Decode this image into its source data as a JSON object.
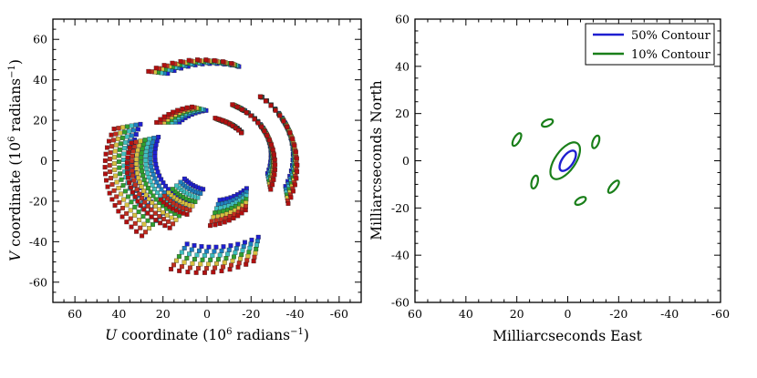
{
  "chart_data": [
    {
      "type": "scatter",
      "xlabel_italic": "U",
      "xlabel_rest": " coordinate (10",
      "xlabel_exp": "6",
      "xlabel_units": " radians",
      "xlabel_units_exp": "−1",
      "xlabel_close": ")",
      "ylabel_italic": "V",
      "ylabel_rest": " coordinate (10",
      "ylabel_exp": "6",
      "ylabel_units": " radians",
      "ylabel_units_exp": "−1",
      "ylabel_close": ")",
      "xlim": [
        70,
        -70
      ],
      "ylim": [
        -70,
        70
      ],
      "xticks": [
        60,
        40,
        20,
        0,
        -20,
        -40,
        -60
      ],
      "yticks": [
        60,
        40,
        20,
        0,
        -20,
        -40,
        -60
      ],
      "series_colors": [
        "#1f1fd0",
        "#1e7fbf",
        "#3fbfbf",
        "#2f9f2f",
        "#d8c040",
        "#c03020",
        "#b01010"
      ],
      "tracks": [
        {
          "r": 40,
          "a0": 128,
          "a1": 205
        },
        {
          "r": 49,
          "a0": 63,
          "a1": 105
        },
        {
          "r": 30,
          "a0": 115,
          "a1": 200
        },
        {
          "r": 21,
          "a0": 105,
          "a1": 138
        },
        {
          "r": 26,
          "a0": 227,
          "a1": 262
        },
        {
          "r": 40,
          "a0": 308,
          "a1": 385
        },
        {
          "r": 49,
          "a0": 243,
          "a1": 285
        },
        {
          "r": 30,
          "a0": 295,
          "a1": 380
        },
        {
          "r": 21,
          "a0": 285,
          "a1": 318
        },
        {
          "r": 26,
          "a0": 47,
          "a1": 82
        }
      ]
    },
    {
      "type": "contour",
      "xlabel": "Milliarcseconds East",
      "ylabel": "Milliarcseconds North",
      "xlim": [
        60,
        -60
      ],
      "ylim": [
        -60,
        60
      ],
      "xticks": [
        60,
        40,
        20,
        0,
        -20,
        -40,
        -60
      ],
      "yticks": [
        60,
        40,
        20,
        0,
        -20,
        -40,
        -60
      ],
      "legend": [
        {
          "label": "50% Contour",
          "color": "#1f1fd0"
        },
        {
          "label": "10% Contour",
          "color": "#1a7f1a"
        }
      ],
      "contours_50": [
        {
          "cx": 0,
          "cy": 0,
          "rx": 2.2,
          "ry": 5,
          "angle": 35
        }
      ],
      "contours_10": [
        {
          "cx": 1,
          "cy": 0,
          "rx": 4,
          "ry": 9,
          "angle": 35
        },
        {
          "cx": 20,
          "cy": 9,
          "rx": 1.2,
          "ry": 3,
          "angle": 30
        },
        {
          "cx": 8,
          "cy": 16,
          "rx": 1.2,
          "ry": 2.5,
          "angle": 65
        },
        {
          "cx": -11,
          "cy": 8,
          "rx": 1.2,
          "ry": 2.8,
          "angle": 20
        },
        {
          "cx": 13,
          "cy": -9,
          "rx": 1.2,
          "ry": 2.8,
          "angle": 15
        },
        {
          "cx": -5,
          "cy": -17,
          "rx": 1.2,
          "ry": 2.5,
          "angle": 60
        },
        {
          "cx": -18,
          "cy": -11,
          "rx": 1.2,
          "ry": 3.2,
          "angle": 40
        }
      ]
    }
  ]
}
